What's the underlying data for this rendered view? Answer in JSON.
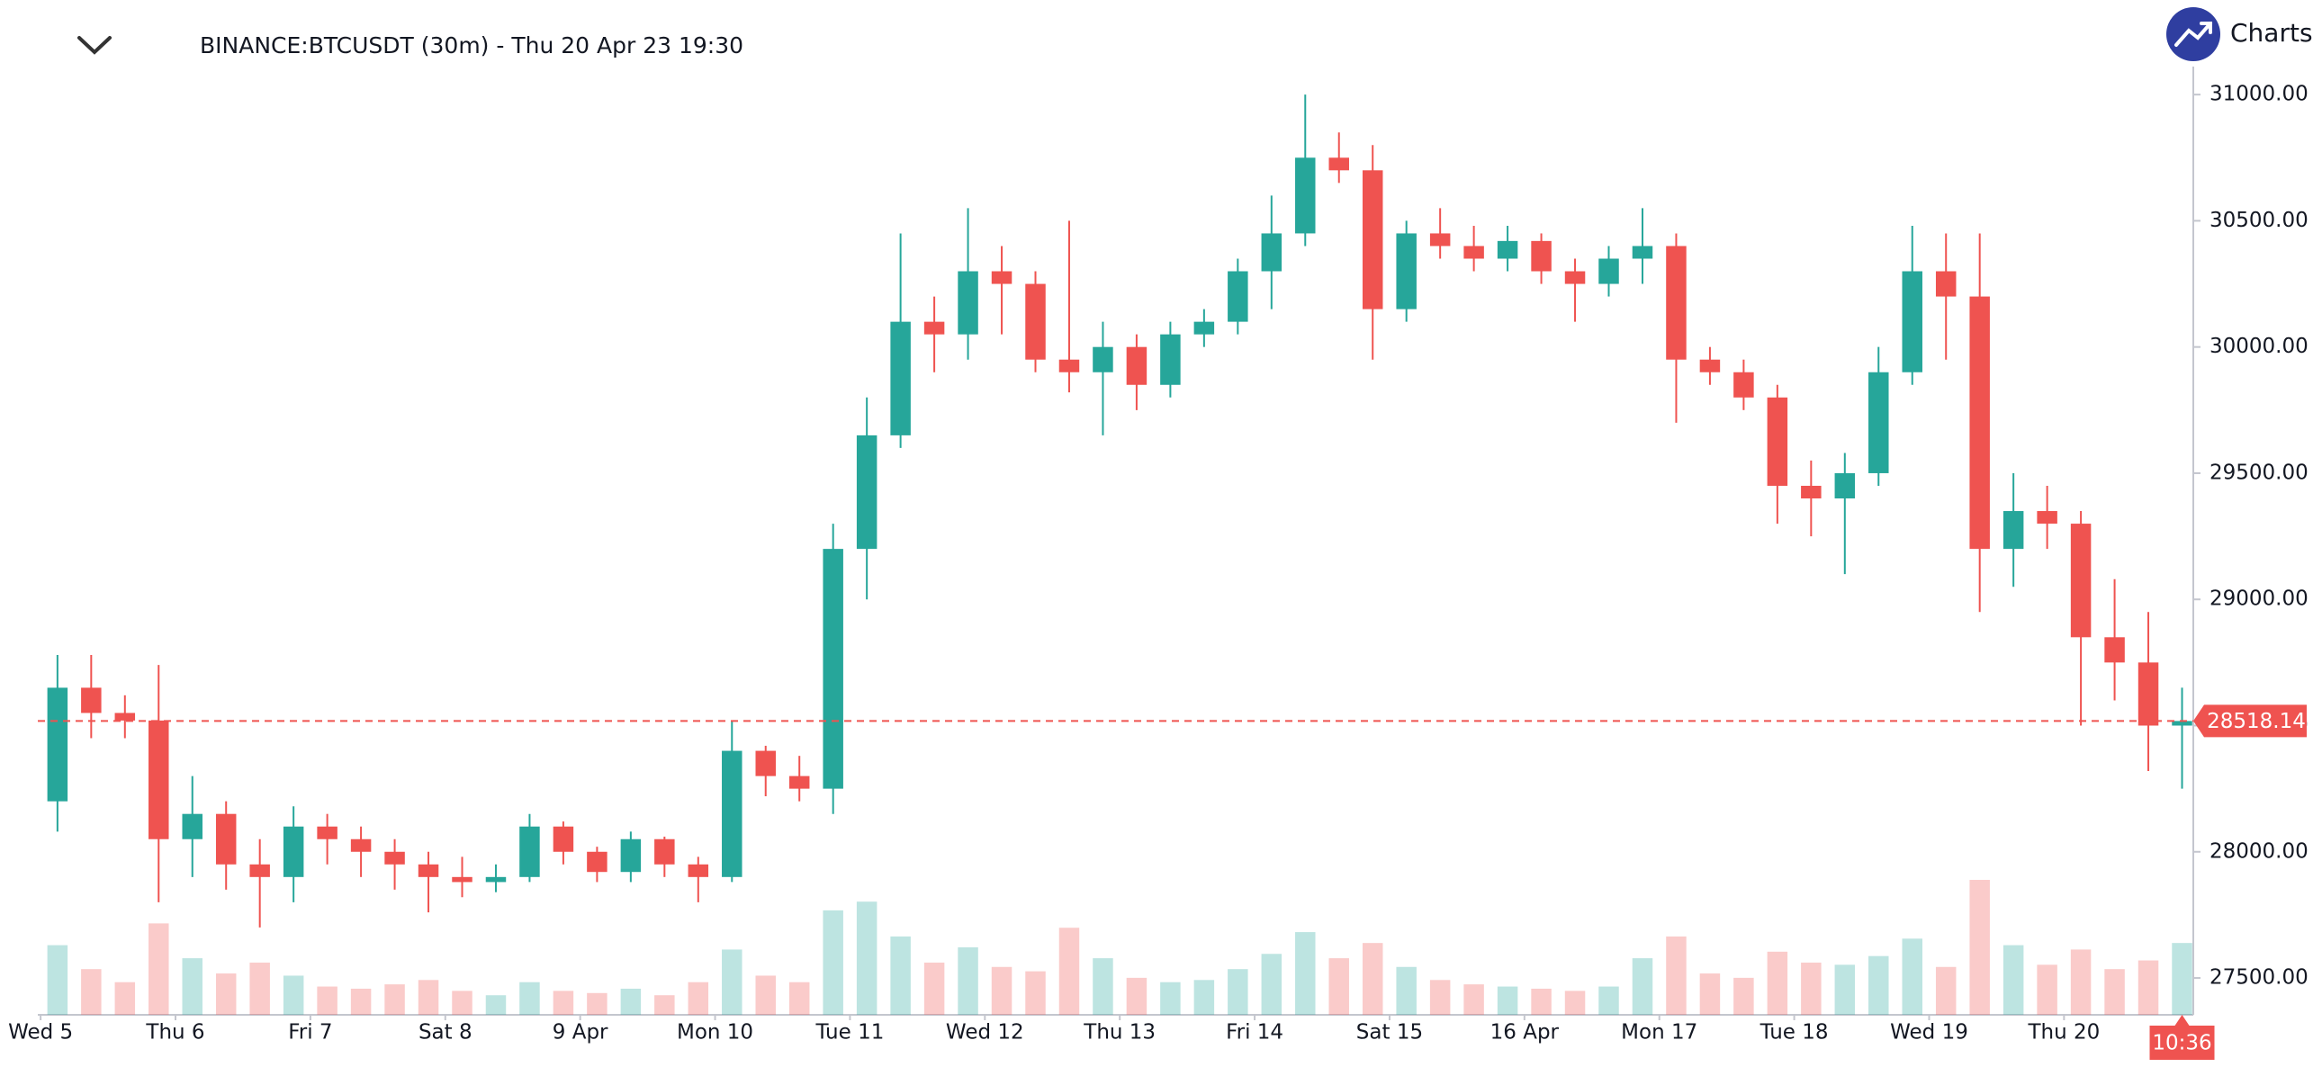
{
  "chart_data": {
    "type": "candlestick",
    "title": "BINANCE:BTCUSDT (30m) - Thu 20 Apr 23 19:30",
    "brand": "Charts p",
    "up_color": "#26a69a",
    "down_color": "#ef5350",
    "xlim": [
      -0.5,
      383
    ],
    "ylim": [
      27354,
      31111
    ],
    "xticks": [
      {
        "value": 0,
        "label": "Wed 5"
      },
      {
        "value": 24,
        "label": "Thu 6"
      },
      {
        "value": 48,
        "label": "Fri 7"
      },
      {
        "value": 72,
        "label": "Sat 8"
      },
      {
        "value": 96,
        "label": "9 Apr"
      },
      {
        "value": 120,
        "label": "Mon 10"
      },
      {
        "value": 144,
        "label": "Tue 11"
      },
      {
        "value": 168,
        "label": "Wed 12"
      },
      {
        "value": 192,
        "label": "Thu 13"
      },
      {
        "value": 216,
        "label": "Fri 14"
      },
      {
        "value": 240,
        "label": "Sat 15"
      },
      {
        "value": 264,
        "label": "16 Apr"
      },
      {
        "value": 288,
        "label": "Mon 17"
      },
      {
        "value": 312,
        "label": "Tue 18"
      },
      {
        "value": 336,
        "label": "Wed 19"
      },
      {
        "value": 360,
        "label": "Thu 20"
      }
    ],
    "yticks": [
      {
        "value": 27500,
        "label": "27500.00"
      },
      {
        "value": 28000,
        "label": "28000.00"
      },
      {
        "value": 28500,
        "label": "28500.00"
      },
      {
        "value": 29000,
        "label": "29000.00"
      },
      {
        "value": 29500,
        "label": "29500.00"
      },
      {
        "value": 30000,
        "label": "30000.00"
      },
      {
        "value": 30500,
        "label": "30500.00"
      },
      {
        "value": 31000,
        "label": "31000.00"
      }
    ],
    "last_price": 28518.14,
    "countdown": "10:36",
    "x": [
      3,
      9,
      15,
      21,
      27,
      33,
      39,
      45,
      51,
      57,
      63,
      69,
      75,
      81,
      87,
      93,
      99,
      105,
      111,
      117,
      123,
      129,
      135,
      141,
      147,
      153,
      159,
      165,
      171,
      177,
      183,
      189,
      195,
      201,
      207,
      213,
      219,
      225,
      231,
      237,
      243,
      249,
      255,
      261,
      267,
      273,
      279,
      285,
      291,
      297,
      303,
      309,
      315,
      321,
      327,
      333,
      339,
      345,
      351,
      357,
      363,
      369,
      375,
      381
    ],
    "open": [
      28200,
      28650,
      28550,
      28520,
      28050,
      28150,
      27950,
      27900,
      28100,
      28050,
      28000,
      27950,
      27900,
      27880,
      27900,
      28100,
      28000,
      27920,
      28050,
      27950,
      27900,
      28400,
      28300,
      28250,
      29200,
      29650,
      30100,
      30050,
      30300,
      30250,
      29950,
      29900,
      30000,
      29850,
      30050,
      30100,
      30300,
      30450,
      30750,
      30700,
      30150,
      30450,
      30400,
      30350,
      30420,
      30300,
      30250,
      30350,
      30400,
      29950,
      29900,
      29800,
      29450,
      29400,
      29500,
      29900,
      30300,
      30200,
      29200,
      29350,
      29300,
      28850,
      28750,
      28500
    ],
    "high": [
      28780,
      28780,
      28620,
      28740,
      28300,
      28200,
      28050,
      28180,
      28150,
      28100,
      28050,
      28000,
      27980,
      27950,
      28150,
      28120,
      28020,
      28080,
      28060,
      27980,
      28520,
      28420,
      28380,
      29300,
      29800,
      30450,
      30200,
      30550,
      30400,
      30300,
      30500,
      30100,
      30050,
      30100,
      30150,
      30350,
      30600,
      31000,
      30850,
      30800,
      30500,
      30550,
      30480,
      30480,
      30450,
      30350,
      30400,
      30550,
      30450,
      30000,
      29950,
      29850,
      29550,
      29580,
      30000,
      30480,
      30450,
      30450,
      29500,
      29450,
      29350,
      29080,
      28950,
      28650
    ],
    "low": [
      28080,
      28450,
      28450,
      27800,
      27900,
      27850,
      27700,
      27800,
      27950,
      27900,
      27850,
      27760,
      27820,
      27840,
      27880,
      27950,
      27880,
      27880,
      27900,
      27800,
      27880,
      28220,
      28200,
      28150,
      29000,
      29600,
      29900,
      29950,
      30050,
      29900,
      29820,
      29650,
      29750,
      29800,
      30000,
      30050,
      30150,
      30400,
      30650,
      29950,
      30100,
      30350,
      30300,
      30300,
      30250,
      30100,
      30200,
      30250,
      29700,
      29850,
      29750,
      29300,
      29250,
      29100,
      29450,
      29850,
      29950,
      28950,
      29050,
      29200,
      28500,
      28600,
      28320,
      28250
    ],
    "close": [
      28650,
      28550,
      28520,
      28050,
      28150,
      27950,
      27900,
      28100,
      28050,
      28000,
      27950,
      27900,
      27880,
      27900,
      28100,
      28000,
      27920,
      28050,
      27950,
      27900,
      28400,
      28300,
      28250,
      29200,
      29650,
      30100,
      30050,
      30300,
      30250,
      29950,
      29900,
      30000,
      29850,
      30050,
      30100,
      30300,
      30450,
      30750,
      30700,
      30150,
      30450,
      30400,
      30350,
      30420,
      30300,
      30250,
      30350,
      30400,
      29950,
      29900,
      29800,
      29450,
      29400,
      29500,
      29900,
      30300,
      30200,
      29200,
      29350,
      29300,
      28850,
      28750,
      28500,
      28518.14
    ],
    "volume": [
      3200,
      2100,
      1500,
      4200,
      2600,
      1900,
      2400,
      1800,
      1300,
      1200,
      1400,
      1600,
      1100,
      900,
      1500,
      1100,
      1000,
      1200,
      900,
      1500,
      3000,
      1800,
      1500,
      4800,
      5200,
      3600,
      2400,
      3100,
      2200,
      2000,
      4000,
      2600,
      1700,
      1500,
      1600,
      2100,
      2800,
      3800,
      2600,
      3300,
      2200,
      1600,
      1400,
      1300,
      1200,
      1100,
      1300,
      2600,
      3600,
      1900,
      1700,
      2900,
      2400,
      2300,
      2700,
      3500,
      2200,
      6200,
      3200,
      2300,
      3000,
      2100,
      2500,
      3300
    ]
  }
}
